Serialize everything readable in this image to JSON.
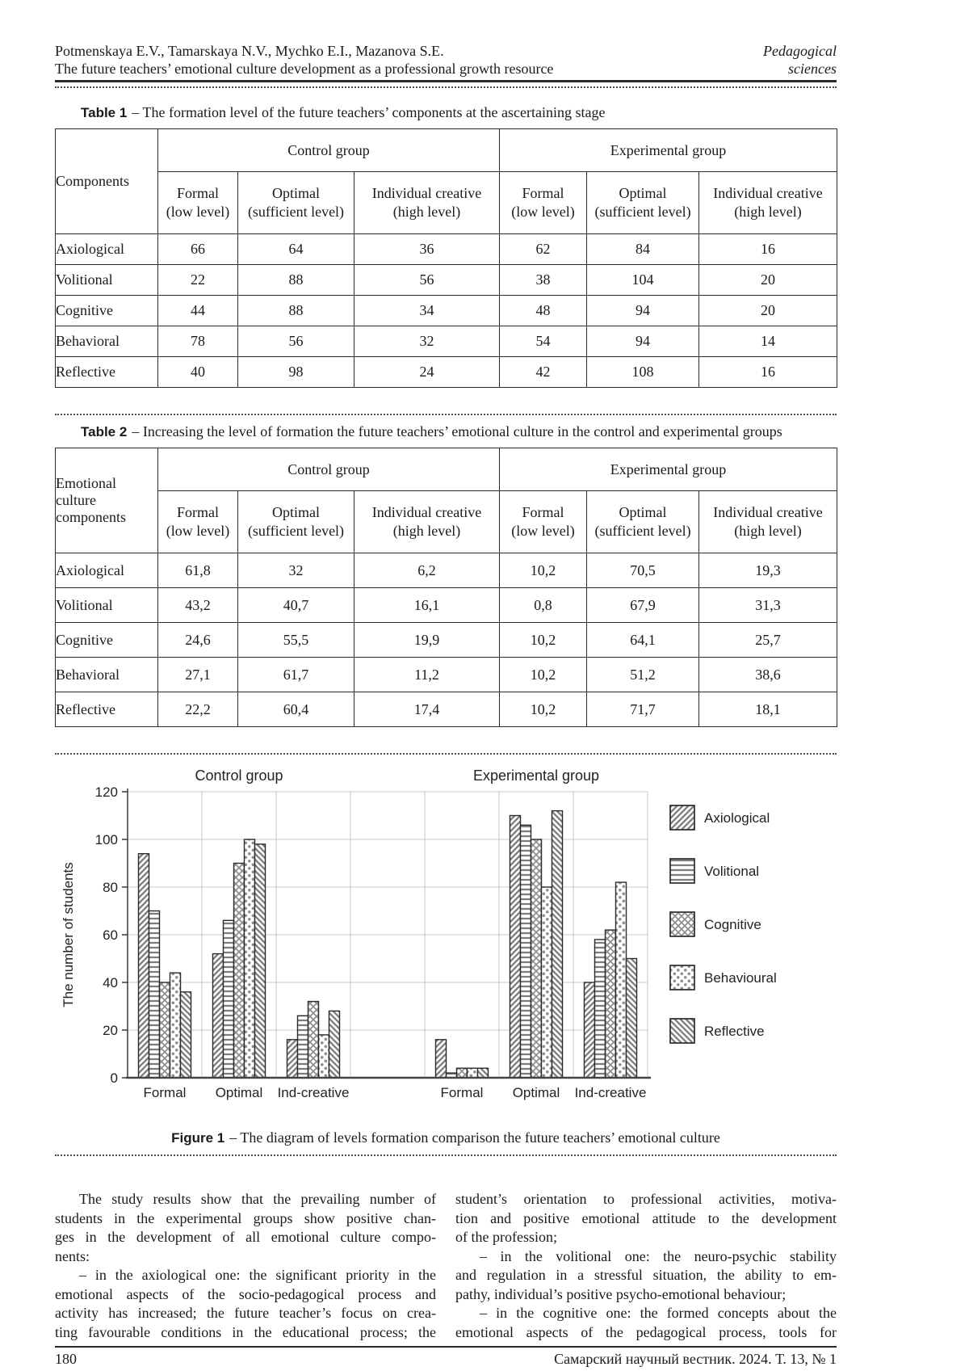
{
  "header": {
    "authors": "Potmenskaya E.V., Tamarskaya N.V., Mychko E.I., Mazanova S.E.",
    "paper_title": "The future teachers’ emotional culture development as a professional growth resource",
    "section_line1": "Pedagogical",
    "section_line2": "sciences"
  },
  "table1": {
    "caption_label": "Table 1",
    "caption_rest": "– The formation level of the future teachers’ components at the ascertaining stage",
    "corner": "Components",
    "groups": [
      "Control group",
      "Experimental group"
    ],
    "col_headers": [
      "Formal\n(low level)",
      "Optimal\n(sufficient level)",
      "Individual creative\n(high level)",
      "Formal\n(low level)",
      "Optimal\n(sufficient level)",
      "Individual creative\n(high level)"
    ],
    "rows": [
      {
        "label": "Axiological",
        "values": [
          "66",
          "64",
          "36",
          "62",
          "84",
          "16"
        ]
      },
      {
        "label": "Volitional",
        "values": [
          "22",
          "88",
          "56",
          "38",
          "104",
          "20"
        ]
      },
      {
        "label": "Cognitive",
        "values": [
          "44",
          "88",
          "34",
          "48",
          "94",
          "20"
        ]
      },
      {
        "label": "Behavioral",
        "values": [
          "78",
          "56",
          "32",
          "54",
          "94",
          "14"
        ]
      },
      {
        "label": "Reflective",
        "values": [
          "40",
          "98",
          "24",
          "42",
          "108",
          "16"
        ]
      }
    ]
  },
  "table2": {
    "caption_label": "Table 2",
    "caption_rest": "– Increasing the level of formation the future teachers’ emotional culture in the control and experimental groups",
    "corner": "Emotional\nculture\ncomponents",
    "groups": [
      "Control group",
      "Experimental group"
    ],
    "col_headers": [
      "Formal\n(low level)",
      "Optimal\n(sufficient level)",
      "Individual creative\n(high level)",
      "Formal\n(low level)",
      "Optimal\n(sufficient level)",
      "Individual creative\n(high level)"
    ],
    "rows": [
      {
        "label": "Axiological",
        "values": [
          "61,8",
          "32",
          "6,2",
          "10,2",
          "70,5",
          "19,3"
        ]
      },
      {
        "label": "Volitional",
        "values": [
          "43,2",
          "40,7",
          "16,1",
          "0,8",
          "67,9",
          "31,3"
        ]
      },
      {
        "label": "Cognitive",
        "values": [
          "24,6",
          "55,5",
          "19,9",
          "10,2",
          "64,1",
          "25,7"
        ]
      },
      {
        "label": "Behavioral",
        "values": [
          "27,1",
          "61,7",
          "11,2",
          "10,2",
          "51,2",
          "38,6"
        ]
      },
      {
        "label": "Reflective",
        "values": [
          "22,2",
          "60,4",
          "17,4",
          "10,2",
          "71,7",
          "18,1"
        ]
      }
    ]
  },
  "figure": {
    "caption_label": "Figure 1",
    "caption_rest": "– The diagram of levels formation comparison the future teachers’ emotional culture"
  },
  "chart_data": {
    "type": "bar",
    "group_titles": [
      "Control group",
      "Experimental group"
    ],
    "ylabel": "The number of students",
    "ylim": [
      0,
      120
    ],
    "yticks": [
      0,
      20,
      40,
      60,
      80,
      100,
      120
    ],
    "grid": true,
    "legend_position": "right",
    "categories": [
      "Formal",
      "Optimal",
      "Ind-creative",
      "Formal",
      "Optimal",
      "Ind-creative"
    ],
    "series": [
      {
        "name": "Axiological",
        "pattern": "diagonal-up",
        "values": [
          94,
          52,
          16,
          16,
          110,
          40
        ]
      },
      {
        "name": "Volitional",
        "pattern": "horizontal-lines",
        "values": [
          70,
          66,
          26,
          2,
          106,
          58
        ]
      },
      {
        "name": "Cognitive",
        "pattern": "crosshatch",
        "values": [
          40,
          90,
          32,
          4,
          100,
          62
        ]
      },
      {
        "name": "Behavioural",
        "pattern": "dots",
        "values": [
          44,
          100,
          18,
          4,
          80,
          82
        ]
      },
      {
        "name": "Reflective",
        "pattern": "diagonal-down",
        "values": [
          36,
          98,
          28,
          4,
          112,
          50
        ]
      }
    ]
  },
  "body": {
    "left_lines": [
      {
        "t": "The study results show that the prevailing number of",
        "ind": true
      },
      {
        "t": "students in the experimental groups show positive chan-"
      },
      {
        "t": "ges in the development of all emotional culture compo-"
      },
      {
        "t": "nents:",
        "end": true
      },
      {
        "t": "– in the axiological one: the significant priority in the",
        "ind": true
      },
      {
        "t": "emotional aspects of the socio-pedagogical process and"
      },
      {
        "t": "activity has increased; the future teacher’s focus on crea-"
      },
      {
        "t": "ting favourable conditions in the educational process; the"
      }
    ],
    "right_lines": [
      {
        "t": "student’s orientation to professional activities, motiva-"
      },
      {
        "t": "tion and positive emotional attitude to the development"
      },
      {
        "t": "of the profession;",
        "end": true
      },
      {
        "t": "– in the volitional one: the neuro-psychic stability",
        "ind": true
      },
      {
        "t": "and regulation in a stressful situation, the ability to em-"
      },
      {
        "t": "pathy, individual’s positive psycho-emotional behaviour;",
        "end": true
      },
      {
        "t": "– in the cognitive one: the formed concepts about the",
        "ind": true
      },
      {
        "t": "emotional aspects of the pedagogical process, tools for"
      }
    ]
  },
  "footer": {
    "page_number": "180",
    "journal": "Самарский научный вестник. 2024. Т. 13, № 1"
  }
}
